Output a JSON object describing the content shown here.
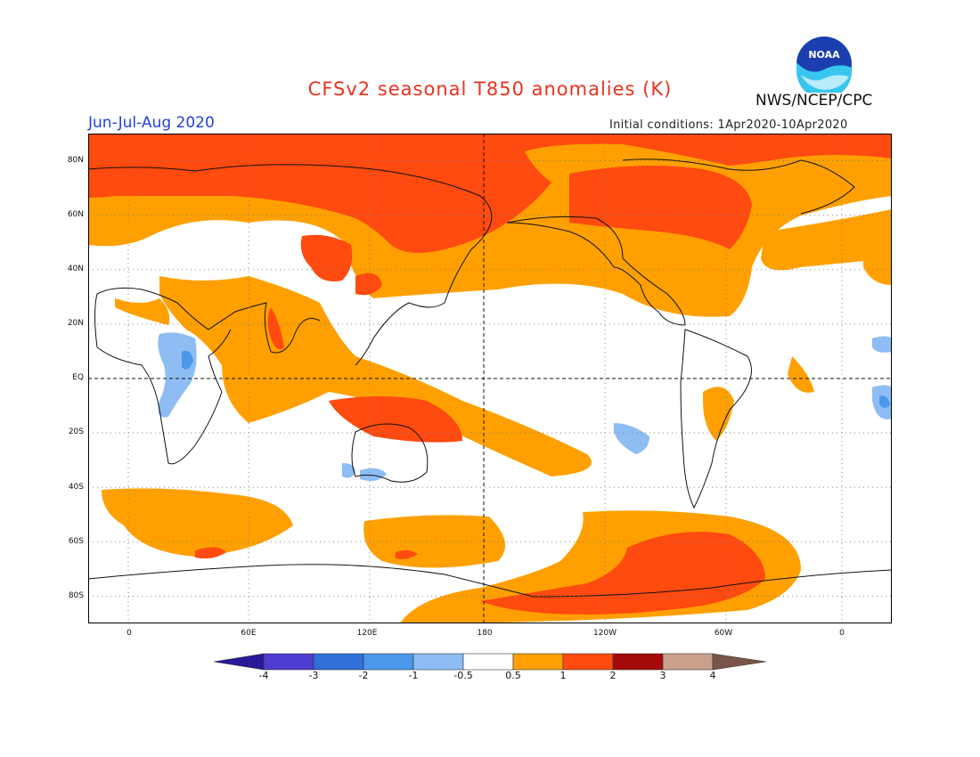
{
  "header": {
    "title": "CFSv2 seasonal T850 anomalies (K)",
    "season": "Jun-Jul-Aug 2020",
    "agency": "NWS/NCEP/CPC",
    "initial_conditions": "Initial conditions: 1Apr2020-10Apr2020",
    "logo_text": "NOAA"
  },
  "map": {
    "lat_labels": [
      "80N",
      "60N",
      "40N",
      "20N",
      "EQ",
      "20S",
      "40S",
      "60S",
      "80S"
    ],
    "lon_labels": [
      "0",
      "60E",
      "120E",
      "180",
      "120W",
      "60W",
      "0"
    ],
    "projection": "cylindrical equidistant, longitude -20 to 380"
  },
  "colorbar": {
    "tick_labels": [
      "-4",
      "-3",
      "-2",
      "-1",
      "-0.5",
      "0.5",
      "1",
      "2",
      "3",
      "4"
    ],
    "colors": [
      "#2a1a9a",
      "#4d3dd0",
      "#2e6fd8",
      "#4a98ec",
      "#8dbdf3",
      "#ffffff",
      "#ffa000",
      "#ff4a10",
      "#a50a0a",
      "#caa08c",
      "#7a5448"
    ]
  }
}
